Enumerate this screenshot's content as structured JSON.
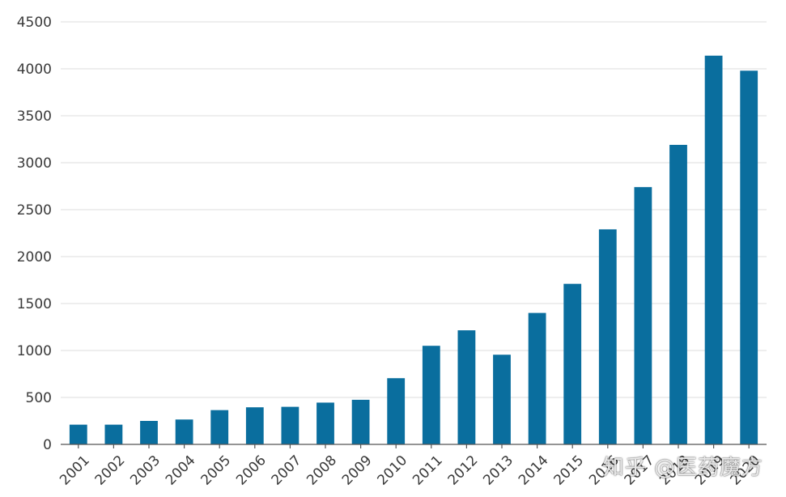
{
  "chart_data": {
    "type": "bar",
    "title": "",
    "xlabel": "",
    "ylabel": "",
    "categories": [
      "2001",
      "2002",
      "2003",
      "2004",
      "2005",
      "2006",
      "2007",
      "2008",
      "2009",
      "2010",
      "2011",
      "2012",
      "2013",
      "2014",
      "2015",
      "2016",
      "2017",
      "2018",
      "2019",
      "2020"
    ],
    "values": [
      210,
      210,
      250,
      265,
      365,
      395,
      400,
      445,
      475,
      705,
      1050,
      1215,
      955,
      1400,
      1710,
      2290,
      2740,
      3190,
      4140,
      3980
    ],
    "ylim": [
      0,
      4500
    ],
    "yticks": [
      0,
      500,
      1000,
      1500,
      2000,
      2500,
      3000,
      3500,
      4000,
      4500
    ],
    "grid": true,
    "bar_color": "#0a6e9e"
  },
  "watermark": {
    "text": "知乎 @医药魔方"
  }
}
